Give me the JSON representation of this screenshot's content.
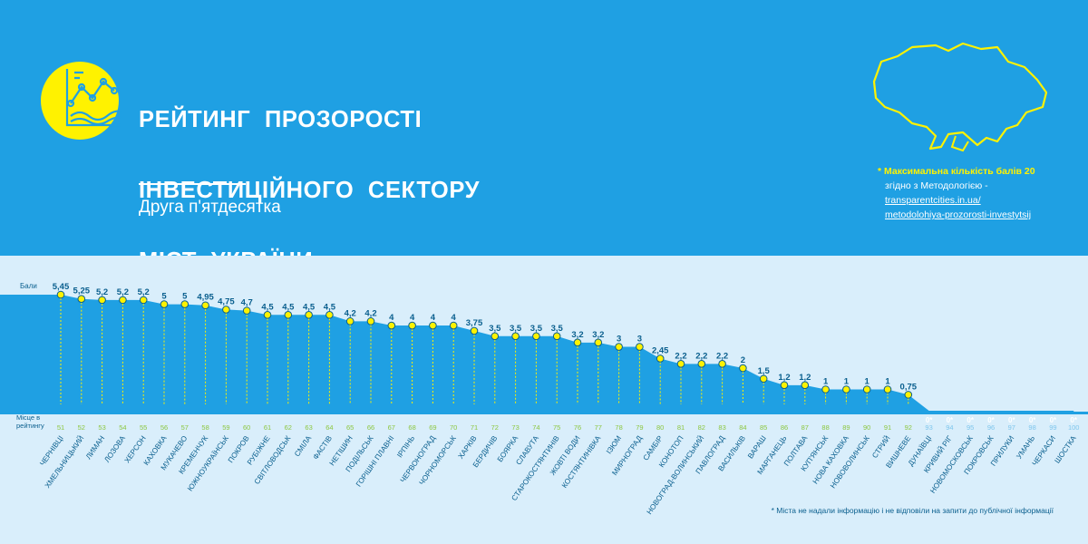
{
  "header": {
    "title_lines": [
      "РЕЙТИНГ ПРОЗОРОСТІ",
      "ІНВЕСТИЦІЙНОГО СЕКТОРУ",
      "МІСТ УКРАЇНИ"
    ],
    "subtitle": "Друга п'ятдесятка"
  },
  "note": {
    "line1": "* Максимальна кількість балів 20",
    "line2": "згідно з Методологією -",
    "link1": "transparentcities.in.ua/",
    "link2": "metodolohiya-prozorosti-investytsij"
  },
  "footnote": "* Міста не надали інформацію і не відповіли на запити до публічної інформації",
  "colors": {
    "background": "#1fa0e3",
    "chart_bg": "#d9eefb",
    "accent": "#fff200",
    "label": "#0a5f8e",
    "rank_label": "#8cc63f"
  },
  "icons": {
    "logo": "line-chart-icon",
    "map": "ukraine-map-icon"
  },
  "chart_data": {
    "type": "area",
    "title": "Рейтинг прозорості інвестиційного сектору міст України",
    "ylabel": "Бали",
    "xlabel": "Місце в рейтингу",
    "ylim": [
      0,
      6
    ],
    "cities": [
      "ЧЕРНІВЦІ",
      "ХМЕЛЬНИЦЬКИЙ",
      "ЛИМАН",
      "ЛОЗОВА",
      "ХЕРСОН",
      "КАХОВКА",
      "МУКАЧЕВО",
      "КРЕМЕНЧУК",
      "ЮЖНОУКРАЇНСЬК",
      "ПОКРОВ",
      "РУБІЖНЕ",
      "СВІТЛОВОДСЬК",
      "СМІЛА",
      "ФАСТІВ",
      "НЕТІШИН",
      "ПОДІЛЬСЬК",
      "ГОРІШНІ ПЛАВНІ",
      "ІРПІНЬ",
      "ЧЕРВОНОГРАД",
      "ЧОРНОМОРСЬК",
      "ХАРКІВ",
      "БЕРДИЧІВ",
      "БОЯРКА",
      "СЛАВУТА",
      "СТАРОКОСТЯНТИНІВ",
      "ЖОВТІ ВОДИ",
      "КОСТЯНТИНІВКА",
      "ІЗЮМ",
      "МИРНОГРАД",
      "САМБІР",
      "КОНОТОП",
      "НОВОГРАД-ВОЛИНСЬКИЙ",
      "ПАВЛОГРАД",
      "ВАСИЛЬКІВ",
      "ВАРАШ",
      "МАРГАНЕЦЬ",
      "ПОЛТАВА",
      "КУП'ЯНСЬК",
      "НОВА КАХОВКА",
      "НОВОВОЛИНСЬК",
      "СТРИЙ",
      "ВИШНЕВЕ",
      "ДУНАЇВЦІ",
      "КРИВИЙ РІГ",
      "НОВОМОСКОВСЬК",
      "ПОКРОВСЬК",
      "ПРИЛУКИ",
      "УМАНЬ",
      "ЧЕРКАСИ",
      "ШОСТКА"
    ],
    "ranks": [
      "51",
      "52",
      "53",
      "54",
      "55",
      "56",
      "57",
      "58",
      "59",
      "60",
      "61",
      "62",
      "63",
      "64",
      "65",
      "66",
      "67",
      "68",
      "69",
      "70",
      "71",
      "72",
      "73",
      "74",
      "75",
      "76",
      "77",
      "78",
      "79",
      "80",
      "81",
      "82",
      "83",
      "84",
      "85",
      "86",
      "87",
      "88",
      "89",
      "90",
      "91",
      "92",
      "93",
      "94",
      "95",
      "96",
      "97",
      "98",
      "99",
      "100"
    ],
    "scores": [
      5.45,
      5.25,
      5.2,
      5.2,
      5.2,
      5,
      5,
      4.95,
      4.75,
      4.7,
      4.5,
      4.5,
      4.5,
      4.5,
      4.2,
      4.2,
      4,
      4,
      4,
      4,
      3.75,
      3.5,
      3.5,
      3.5,
      3.5,
      3.2,
      3.2,
      3,
      3,
      2.45,
      2.2,
      2.2,
      2.2,
      2,
      1.5,
      1.2,
      1.2,
      1,
      1,
      1,
      1,
      0.75,
      0,
      0,
      0,
      0,
      0,
      0,
      0,
      0
    ],
    "score_labels": [
      "5,45",
      "5,25",
      "5,2",
      "5,2",
      "5,2",
      "5",
      "5",
      "4,95",
      "4,75",
      "4,7",
      "4,5",
      "4,5",
      "4,5",
      "4,5",
      "4,2",
      "4,2",
      "4",
      "4",
      "4",
      "4",
      "3,75",
      "3,5",
      "3,5",
      "3,5",
      "3,5",
      "3,2",
      "3,2",
      "3",
      "3",
      "2,45",
      "2,2",
      "2,2",
      "2,2",
      "2",
      "1,5",
      "1,2",
      "1,2",
      "1",
      "1",
      "1",
      "1",
      "0,75",
      "0*",
      "0*",
      "0*",
      "0*",
      "0*",
      "0*",
      "0*",
      "0*"
    ]
  }
}
